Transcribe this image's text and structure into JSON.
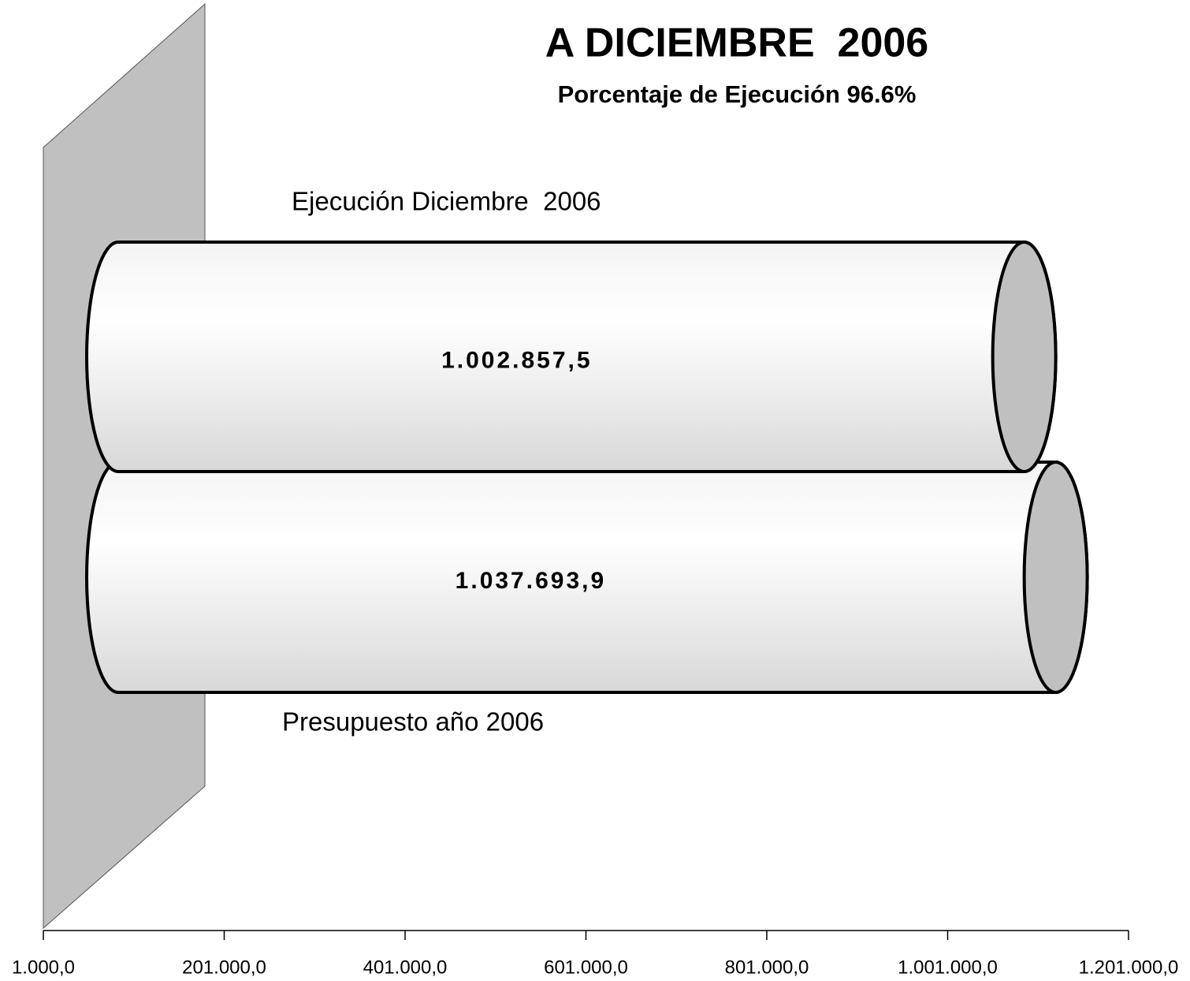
{
  "chart_data": {
    "type": "bar",
    "orientation": "horizontal",
    "title": "A DICIEMBRE  2006",
    "subtitle": "Porcentaje de Ejecución 96.6%",
    "categories": [
      "Ejecución Diciembre  2006",
      "Presupuesto año 2006"
    ],
    "values": [
      1002857.5,
      1037693.9
    ],
    "value_labels": [
      "1.002.857,5",
      "1.037.693,9"
    ],
    "color": "#f2f2f2",
    "xlim": [
      1000,
      1201000
    ],
    "xticks": [
      {
        "value": 1000,
        "label": "1.000,0"
      },
      {
        "value": 201000,
        "label": "201.000,0"
      },
      {
        "value": 401000,
        "label": "401.000,0"
      },
      {
        "value": 601000,
        "label": "601.000,0"
      },
      {
        "value": 801000,
        "label": "801.000,0"
      },
      {
        "value": 1001000,
        "label": "1.001.000,0"
      },
      {
        "value": 1201000,
        "label": "1.201.000,0"
      }
    ]
  }
}
